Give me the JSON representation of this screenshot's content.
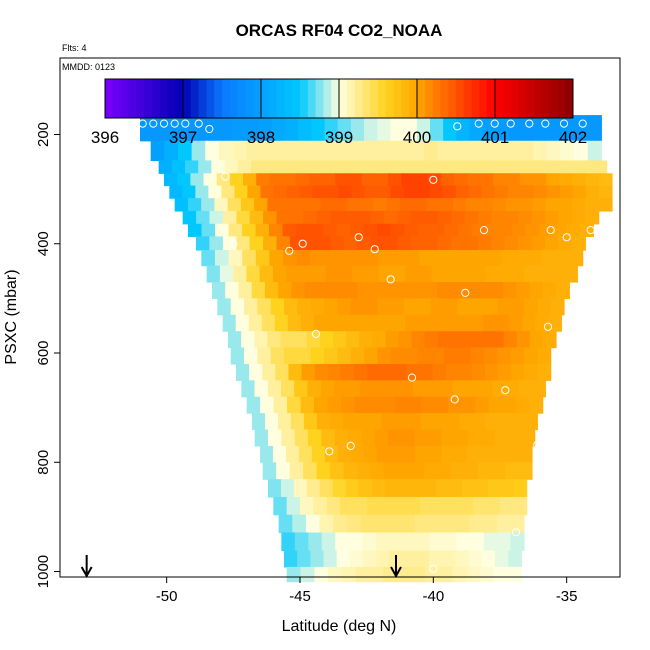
{
  "chart_data": {
    "type": "heatmap",
    "title": "ORCAS RF04 CO2_NOAA",
    "subtitle_flts": "Flts: 4",
    "subtitle_mmdd": "MMDD: 0123",
    "xlabel": "Latitude (deg N)",
    "ylabel": "PSXC (mbar)",
    "xlim": [
      -54,
      -33
    ],
    "ylim": [
      1010,
      60
    ],
    "x_ticks": [
      -50,
      -45,
      -40,
      -35
    ],
    "x_tick_labels": [
      "-50",
      "-45",
      "-40",
      "-35"
    ],
    "y_ticks": [
      200,
      400,
      600,
      800,
      1000
    ],
    "y_tick_labels": [
      "200",
      "400",
      "600",
      "800",
      "1000"
    ],
    "colorbar": {
      "range": [
        396,
        402
      ],
      "ticks": [
        396,
        397,
        398,
        399,
        400,
        401,
        402
      ],
      "tick_labels": [
        "396",
        "397",
        "398",
        "399",
        "400",
        "401",
        "402"
      ],
      "colors": [
        "#7a00ff",
        "#0000b4",
        "#0a78ff",
        "#00c8ff",
        "#ffffe0",
        "#ffd21e",
        "#ffa500",
        "#ff0000",
        "#8b0000"
      ]
    },
    "rows": [
      {
        "p": 188,
        "lat_left": -51.0,
        "lat_right": -33.7,
        "values": [
          397.9,
          397.9,
          397.9,
          397.9,
          397.9,
          397.9,
          397.9,
          397.95,
          397.95,
          398.0,
          398.1,
          398.2,
          398.35,
          398.5,
          398.6,
          398.7,
          398.8,
          398.9,
          398.95,
          399.0,
          399.0,
          398.9,
          398.7,
          398.5,
          398.25,
          398.1,
          398.0,
          397.95,
          397.9,
          397.9,
          397.9,
          397.9,
          397.9,
          397.9,
          397.9
        ]
      },
      {
        "p": 235,
        "lat_left": -50.6,
        "lat_right": -33.7,
        "values": [
          398.0,
          398.2,
          398.5,
          398.8,
          399.0,
          399.1,
          399.15,
          399.2,
          399.2,
          399.2,
          399.2,
          399.2,
          399.2,
          399.2,
          399.2,
          399.2,
          399.2,
          399.2,
          399.2,
          399.2,
          399.25,
          399.2,
          399.2,
          399.2,
          399.2,
          399.2,
          399.2,
          399.2,
          399.15,
          399.1,
          399.05,
          399.0,
          398.9
        ]
      },
      {
        "p": 260,
        "lat_left": -50.3,
        "lat_right": -33.5,
        "values": [
          398.2,
          398.4,
          398.6,
          398.8,
          399.0,
          399.1,
          399.2,
          399.3,
          399.3,
          399.3,
          399.3,
          399.3,
          399.3,
          399.3,
          399.3,
          399.3,
          399.3,
          399.3,
          399.3,
          399.3,
          399.3,
          399.3,
          399.3,
          399.3,
          399.3,
          399.3,
          399.3,
          399.3,
          399.3,
          399.3,
          399.3,
          399.3,
          399.3,
          399.3
        ]
      },
      {
        "p": 282,
        "lat_left": -50.1,
        "lat_right": -33.3,
        "values": [
          398.3,
          398.5,
          398.8,
          399.0,
          399.3,
          399.6,
          399.9,
          400.25,
          400.3,
          400.3,
          400.35,
          400.4,
          400.4,
          400.5,
          400.5,
          400.4,
          400.4,
          400.5,
          400.6,
          400.6,
          400.55,
          400.4,
          400.35,
          400.3,
          400.3,
          400.2,
          400.2,
          400.1,
          400.1,
          400.0,
          399.95,
          399.9,
          399.85,
          399.8
        ]
      },
      {
        "p": 305,
        "lat_left": -49.9,
        "lat_right": -33.3,
        "values": [
          398.3,
          398.5,
          398.8,
          399.0,
          399.3,
          399.6,
          400.0,
          400.3,
          400.35,
          400.4,
          400.45,
          400.5,
          400.5,
          400.55,
          400.5,
          400.45,
          400.45,
          400.55,
          400.6,
          400.6,
          400.55,
          400.5,
          400.4,
          400.35,
          400.3,
          400.25,
          400.2,
          400.2,
          400.15,
          400.1,
          400.05,
          400.0,
          399.9,
          399.85
        ]
      },
      {
        "p": 328,
        "lat_left": -49.7,
        "lat_right": -33.3,
        "values": [
          398.4,
          398.6,
          398.8,
          399.1,
          399.4,
          399.7,
          400.0,
          400.3,
          400.3,
          400.3,
          400.3,
          400.35,
          400.35,
          400.3,
          400.3,
          400.25,
          400.3,
          400.35,
          400.35,
          400.3,
          400.3,
          400.25,
          400.2,
          400.2,
          400.15,
          400.1,
          400.1,
          400.05,
          400.0,
          400.0,
          399.95,
          399.9,
          399.9
        ]
      },
      {
        "p": 352,
        "lat_left": -49.4,
        "lat_right": -33.8,
        "values": [
          398.5,
          398.7,
          398.9,
          399.2,
          399.5,
          399.8,
          400.1,
          400.3,
          400.3,
          400.35,
          400.4,
          400.45,
          400.45,
          400.45,
          400.4,
          400.35,
          400.4,
          400.45,
          400.45,
          400.4,
          400.35,
          400.3,
          400.25,
          400.2,
          400.2,
          400.15,
          400.1,
          400.05,
          400.0,
          399.95,
          399.9
        ]
      },
      {
        "p": 375,
        "lat_left": -49.2,
        "lat_right": -34.0,
        "values": [
          398.5,
          398.7,
          399.0,
          399.3,
          399.6,
          399.9,
          400.2,
          400.45,
          400.5,
          400.5,
          400.45,
          400.4,
          400.45,
          400.5,
          400.55,
          400.5,
          400.45,
          400.4,
          400.4,
          400.35,
          400.3,
          400.25,
          400.2,
          400.2,
          400.15,
          400.1,
          400.05,
          400.0,
          399.95,
          399.9
        ]
      },
      {
        "p": 398,
        "lat_left": -48.9,
        "lat_right": -34.3,
        "values": [
          398.6,
          398.8,
          399.0,
          399.3,
          399.6,
          399.9,
          400.2,
          400.5,
          400.5,
          400.5,
          400.45,
          400.4,
          400.45,
          400.5,
          400.5,
          400.45,
          400.4,
          400.4,
          400.35,
          400.3,
          400.3,
          400.25,
          400.2,
          400.15,
          400.1,
          400.05,
          400.0,
          399.95,
          399.9
        ]
      },
      {
        "p": 425,
        "lat_left": -48.7,
        "lat_right": -34.4,
        "values": [
          398.7,
          398.9,
          399.1,
          399.4,
          399.7,
          400.0,
          400.1,
          400.15,
          400.1,
          400.1,
          400.1,
          400.1,
          400.1,
          400.05,
          400.05,
          400.05,
          400.0,
          400.0,
          400.0,
          400.0,
          400.0,
          400.0,
          399.95,
          399.95,
          399.95,
          399.9,
          399.9,
          399.9
        ]
      },
      {
        "p": 455,
        "lat_left": -48.5,
        "lat_right": -34.6,
        "values": [
          398.75,
          398.95,
          399.2,
          399.5,
          399.8,
          400.0,
          400.05,
          400.05,
          400.05,
          400.1,
          400.1,
          400.05,
          400.05,
          400.0,
          400.0,
          400.05,
          400.05,
          400.0,
          400.0,
          400.0,
          400.0,
          399.95,
          399.95,
          399.95,
          399.9,
          399.9,
          399.9,
          399.9
        ]
      },
      {
        "p": 485,
        "lat_left": -48.3,
        "lat_right": -34.9,
        "values": [
          398.8,
          399.0,
          399.2,
          399.5,
          399.8,
          400.0,
          400.1,
          400.15,
          400.15,
          400.15,
          400.15,
          400.1,
          400.1,
          400.1,
          400.1,
          400.1,
          400.1,
          400.15,
          400.15,
          400.15,
          400.15,
          400.15,
          400.1,
          400.05,
          400.0,
          399.95,
          399.9
        ]
      },
      {
        "p": 515,
        "lat_left": -48.1,
        "lat_right": -35.1,
        "values": [
          398.8,
          399.0,
          399.2,
          399.4,
          399.6,
          399.8,
          399.9,
          399.95,
          400.0,
          400.05,
          400.1,
          400.1,
          400.05,
          400.05,
          400.0,
          400.0,
          400.05,
          400.05,
          400.0,
          400.0,
          400.0,
          400.05,
          400.05,
          400.0,
          399.95,
          399.9
        ]
      },
      {
        "p": 545,
        "lat_left": -47.9,
        "lat_right": -35.2,
        "values": [
          398.8,
          399.0,
          399.2,
          399.4,
          399.6,
          399.8,
          399.9,
          400.0,
          400.0,
          400.0,
          400.0,
          400.0,
          400.0,
          400.0,
          400.05,
          400.05,
          400.05,
          400.05,
          400.05,
          400.05,
          400.1,
          400.1,
          400.05,
          400.0,
          399.95,
          399.9
        ]
      },
      {
        "p": 575,
        "lat_left": -47.7,
        "lat_right": -35.4,
        "values": [
          398.8,
          399.0,
          399.15,
          399.3,
          399.4,
          399.4,
          399.5,
          399.6,
          399.7,
          399.8,
          399.9,
          399.95,
          400.05,
          400.1,
          400.2,
          400.25,
          400.3,
          400.3,
          400.3,
          400.3,
          400.3,
          400.2,
          400.1,
          400.0,
          399.95
        ]
      },
      {
        "p": 605,
        "lat_left": -47.6,
        "lat_right": -35.6,
        "values": [
          398.8,
          399.0,
          399.2,
          399.4,
          399.5,
          399.5,
          399.6,
          399.7,
          399.8,
          399.9,
          400.0,
          400.1,
          400.15,
          400.15,
          400.2,
          400.2,
          400.25,
          400.25,
          400.2,
          400.15,
          400.1,
          400.05,
          400.0,
          399.95
        ]
      },
      {
        "p": 635,
        "lat_left": -47.4,
        "lat_right": -35.6,
        "values": [
          398.8,
          399.0,
          399.2,
          399.4,
          399.8,
          400.05,
          400.15,
          400.2,
          400.25,
          400.3,
          400.35,
          400.35,
          400.35,
          400.3,
          400.3,
          400.25,
          400.2,
          400.2,
          400.15,
          400.1,
          400.05,
          400.0,
          399.95,
          399.9
        ]
      },
      {
        "p": 665,
        "lat_left": -47.2,
        "lat_right": -35.8,
        "values": [
          398.8,
          399.0,
          399.2,
          399.4,
          399.7,
          399.9,
          400.0,
          400.05,
          400.05,
          400.1,
          400.1,
          400.1,
          400.1,
          400.05,
          400.05,
          400.05,
          400.0,
          400.0,
          400.0,
          399.95,
          399.95,
          399.9,
          399.9
        ]
      },
      {
        "p": 695,
        "lat_left": -47.0,
        "lat_right": -35.9,
        "values": [
          398.8,
          399.0,
          399.2,
          399.5,
          399.8,
          400.0,
          400.05,
          400.1,
          400.15,
          400.15,
          400.15,
          400.2,
          400.2,
          400.15,
          400.15,
          400.1,
          400.1,
          400.05,
          400.0,
          400.0,
          399.95,
          399.9
        ]
      },
      {
        "p": 725,
        "lat_left": -46.8,
        "lat_right": -36.1,
        "values": [
          398.8,
          399.0,
          399.2,
          399.4,
          399.7,
          399.9,
          399.95,
          400.0,
          400.0,
          400.0,
          400.05,
          400.05,
          400.05,
          400.0,
          400.0,
          400.0,
          399.95,
          399.95,
          399.9,
          399.9,
          399.9,
          399.9
        ]
      },
      {
        "p": 755,
        "lat_left": -46.7,
        "lat_right": -36.2,
        "values": [
          398.8,
          399.0,
          399.2,
          399.4,
          399.6,
          399.8,
          399.9,
          399.95,
          400.0,
          400.05,
          400.1,
          400.1,
          400.05,
          400.05,
          400.0,
          400.0,
          399.95,
          399.95,
          399.9,
          399.9,
          399.9
        ]
      },
      {
        "p": 785,
        "lat_left": -46.5,
        "lat_right": -36.3,
        "values": [
          398.8,
          399.0,
          399.2,
          399.4,
          399.6,
          399.8,
          399.9,
          399.95,
          400.0,
          400.05,
          400.05,
          400.05,
          400.0,
          400.0,
          399.95,
          399.95,
          399.9,
          399.9,
          399.9,
          399.9,
          399.9
        ]
      },
      {
        "p": 815,
        "lat_left": -46.4,
        "lat_right": -36.3,
        "values": [
          398.8,
          399.0,
          399.2,
          399.4,
          399.6,
          399.75,
          399.85,
          399.9,
          399.95,
          400.0,
          400.0,
          400.0,
          399.95,
          399.95,
          399.9,
          399.9,
          399.85,
          399.85,
          399.8,
          399.8
        ]
      },
      {
        "p": 847,
        "lat_left": -46.2,
        "lat_right": -36.5,
        "values": [
          398.75,
          398.9,
          399.1,
          399.25,
          399.4,
          399.55,
          399.65,
          399.75,
          399.8,
          399.85,
          399.85,
          399.85,
          399.85,
          399.8,
          399.8,
          399.75,
          399.75,
          399.7,
          399.7,
          399.65
        ]
      },
      {
        "p": 880,
        "lat_left": -46.0,
        "lat_right": -36.5,
        "values": [
          398.7,
          398.9,
          399.1,
          399.2,
          399.3,
          399.4,
          399.4,
          399.45,
          399.45,
          399.45,
          399.45,
          399.4,
          399.4,
          399.4,
          399.4,
          399.35,
          399.35,
          399.3,
          399.3
        ]
      },
      {
        "p": 912,
        "lat_left": -45.8,
        "lat_right": -36.6,
        "values": [
          398.7,
          398.85,
          399.0,
          399.15,
          399.25,
          399.3,
          399.35,
          399.35,
          399.35,
          399.35,
          399.3,
          399.3,
          399.3,
          399.3,
          399.25,
          399.25,
          399.2,
          399.2
        ]
      },
      {
        "p": 945,
        "lat_left": -45.7,
        "lat_right": -36.6,
        "values": [
          398.6,
          398.7,
          398.8,
          398.9,
          399.0,
          399.0,
          399.05,
          399.1,
          399.1,
          399.1,
          399.1,
          399.05,
          399.05,
          399.0,
          399.0,
          398.95,
          398.95,
          398.9
        ]
      },
      {
        "p": 978,
        "lat_left": -45.6,
        "lat_right": -36.7,
        "values": [
          398.6,
          398.7,
          398.8,
          398.9,
          399.0,
          399.05,
          399.1,
          399.15,
          399.2,
          399.2,
          399.2,
          399.15,
          399.15,
          399.1,
          399.05,
          399.0,
          398.95,
          398.9
        ]
      },
      {
        "p": 1005,
        "lat_left": -45.5,
        "lat_right": -36.7,
        "values": [
          398.8,
          398.9,
          399.0,
          399.1,
          399.15,
          399.2,
          399.2,
          399.25,
          399.25,
          399.25,
          399.2,
          399.2,
          399.15,
          399.1,
          399.05,
          399.0,
          399.0
        ]
      }
    ],
    "points": [
      {
        "lat": -50.9,
        "p": 180
      },
      {
        "lat": -50.5,
        "p": 180
      },
      {
        "lat": -50.1,
        "p": 180
      },
      {
        "lat": -49.7,
        "p": 180
      },
      {
        "lat": -49.3,
        "p": 180
      },
      {
        "lat": -48.8,
        "p": 180
      },
      {
        "lat": -48.4,
        "p": 190
      },
      {
        "lat": -39.1,
        "p": 185
      },
      {
        "lat": -38.3,
        "p": 180
      },
      {
        "lat": -37.7,
        "p": 180
      },
      {
        "lat": -37.1,
        "p": 180
      },
      {
        "lat": -36.4,
        "p": 180
      },
      {
        "lat": -35.8,
        "p": 180
      },
      {
        "lat": -35.1,
        "p": 180
      },
      {
        "lat": -34.4,
        "p": 180
      },
      {
        "lat": -47.8,
        "p": 277
      },
      {
        "lat": -40.0,
        "p": 283
      },
      {
        "lat": -38.1,
        "p": 375
      },
      {
        "lat": -35.6,
        "p": 375
      },
      {
        "lat": -34.1,
        "p": 375
      },
      {
        "lat": -35.0,
        "p": 388
      },
      {
        "lat": -42.8,
        "p": 388
      },
      {
        "lat": -47.5,
        "p": 400
      },
      {
        "lat": -44.9,
        "p": 400
      },
      {
        "lat": -42.2,
        "p": 410
      },
      {
        "lat": -45.4,
        "p": 413
      },
      {
        "lat": -41.6,
        "p": 465
      },
      {
        "lat": -38.8,
        "p": 490
      },
      {
        "lat": -35.7,
        "p": 552
      },
      {
        "lat": -44.4,
        "p": 565
      },
      {
        "lat": -40.8,
        "p": 645
      },
      {
        "lat": -37.3,
        "p": 668
      },
      {
        "lat": -39.2,
        "p": 685
      },
      {
        "lat": -43.1,
        "p": 770
      },
      {
        "lat": -36.1,
        "p": 768
      },
      {
        "lat": -47.6,
        "p": 780
      },
      {
        "lat": -43.9,
        "p": 780
      },
      {
        "lat": -47.0,
        "p": 805
      },
      {
        "lat": -36.9,
        "p": 928
      },
      {
        "lat": -43.4,
        "p": 973
      },
      {
        "lat": -46.4,
        "p": 985
      },
      {
        "lat": -40.0,
        "p": 995
      }
    ],
    "arrows": [
      {
        "lat": -53.0
      },
      {
        "lat": -41.4
      }
    ],
    "grid": false
  }
}
